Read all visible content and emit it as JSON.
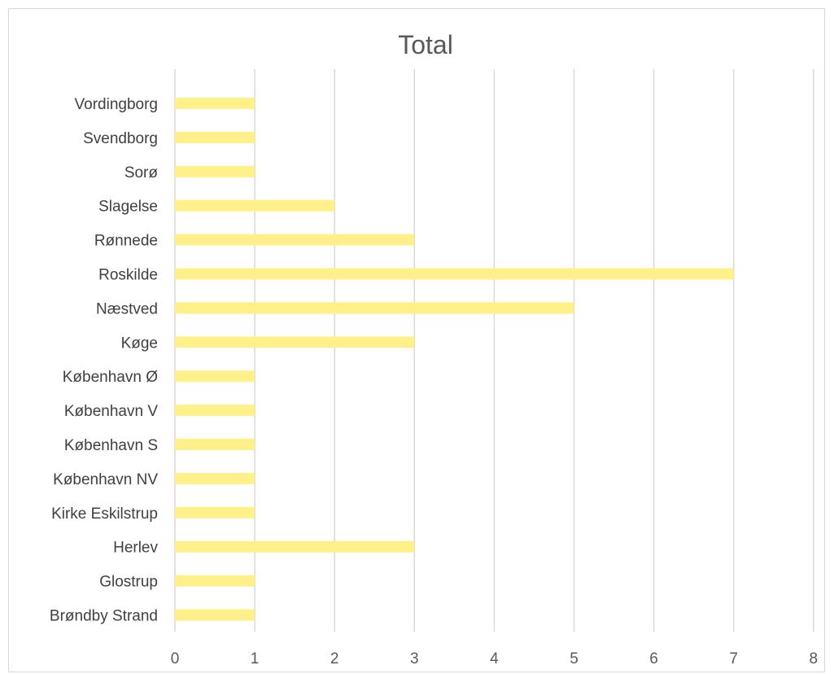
{
  "chart_data": {
    "type": "bar",
    "orientation": "horizontal",
    "title": "Total",
    "xlabel": "",
    "ylabel": "",
    "xlim": [
      0,
      8
    ],
    "x_ticks": [
      "0",
      "1",
      "2",
      "3",
      "4",
      "5",
      "6",
      "7",
      "8"
    ],
    "grid": "vertical",
    "legend": "none",
    "bar_color": "#fff08a",
    "categories": [
      "Vordingborg",
      "Svendborg",
      "Sorø",
      "Slagelse",
      "Rønnede",
      "Roskilde",
      "Næstved",
      "Køge",
      "København Ø",
      "København V",
      "København S",
      "København NV",
      "Kirke Eskilstrup",
      "Herlev",
      "Glostrup",
      "Brøndby Strand"
    ],
    "values": [
      1,
      1,
      1,
      2,
      3,
      7,
      5,
      3,
      1,
      1,
      1,
      1,
      1,
      3,
      1,
      1
    ]
  }
}
